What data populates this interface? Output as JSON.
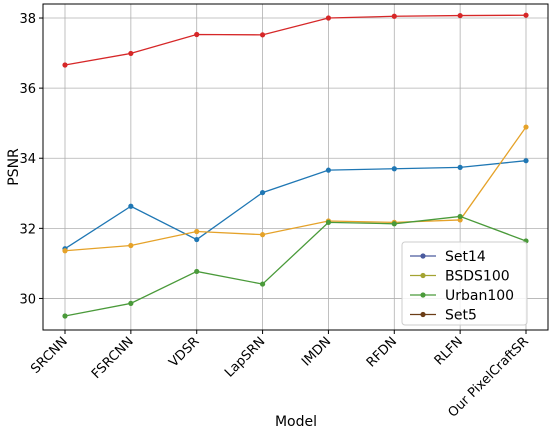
{
  "chart_data": {
    "type": "line",
    "categories": [
      "SRCNN",
      "FSRCNN",
      "VDSR",
      "LapSRN",
      "IMDN",
      "RFDN",
      "RLFN",
      "Our PixelCraftSR"
    ],
    "xlabel": "Model",
    "ylabel": "PSNR",
    "ylim": [
      29.1,
      38.4
    ],
    "yticks": [
      30,
      32,
      34,
      36,
      38
    ],
    "grid": true,
    "legend_position": "bottom-right",
    "series": [
      {
        "name": "Set14",
        "color": "#1f77b4",
        "values": [
          31.42,
          32.63,
          31.68,
          33.02,
          33.66,
          33.7,
          33.74,
          33.93
        ]
      },
      {
        "name": "BSDS100",
        "color": "#e5a229",
        "values": [
          31.36,
          31.51,
          31.91,
          31.82,
          32.21,
          32.17,
          32.24,
          34.89
        ]
      },
      {
        "name": "Urban100",
        "color": "#4a9a3a",
        "values": [
          29.5,
          29.86,
          30.77,
          30.41,
          32.17,
          32.13,
          32.34,
          31.64
        ]
      },
      {
        "name": "Set5",
        "color": "#d62728",
        "values": [
          36.66,
          36.99,
          37.53,
          37.52,
          38.0,
          38.05,
          38.07,
          38.08
        ]
      }
    ],
    "legend_markers": [
      "#4a5a9e",
      "#a3a332",
      "#4a9a3a",
      "#6b3d16"
    ]
  }
}
